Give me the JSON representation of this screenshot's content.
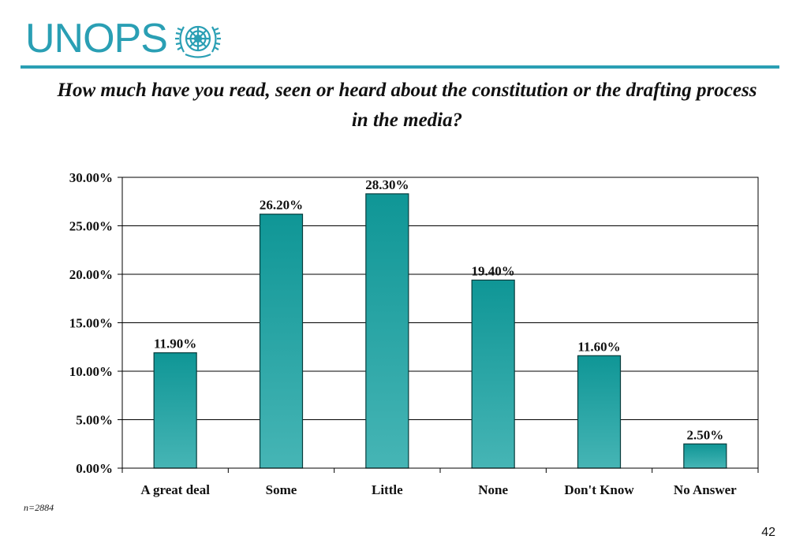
{
  "logo": {
    "text": "UNOPS",
    "emblem": "un-emblem-icon",
    "color": "#2a9fb4"
  },
  "note": "n=2884",
  "page_number": "42",
  "chart_data": {
    "type": "bar",
    "title": "How much have you read, seen or heard about the constitution or the drafting process in the media?",
    "categories": [
      "A great deal",
      "Some",
      "Little",
      "None",
      "Don't Know",
      "No Answer"
    ],
    "values": [
      11.9,
      26.2,
      28.3,
      19.4,
      11.6,
      2.5
    ],
    "data_labels": [
      "11.90%",
      "26.20%",
      "28.30%",
      "19.40%",
      "11.60%",
      "2.50%"
    ],
    "ylim": [
      0,
      30
    ],
    "yticks": [
      0,
      5,
      10,
      15,
      20,
      25,
      30
    ],
    "ytick_labels": [
      "0.00%",
      "5.00%",
      "10.00%",
      "15.00%",
      "20.00%",
      "25.00%",
      "30.00%"
    ],
    "xlabel": "",
    "ylabel": "",
    "grid": true,
    "legend": "none",
    "colors": {
      "bar_top": "#0f9696",
      "bar_bottom": "#46b5b5",
      "bar_edge": "#083c3c",
      "grid": "#000000"
    }
  }
}
